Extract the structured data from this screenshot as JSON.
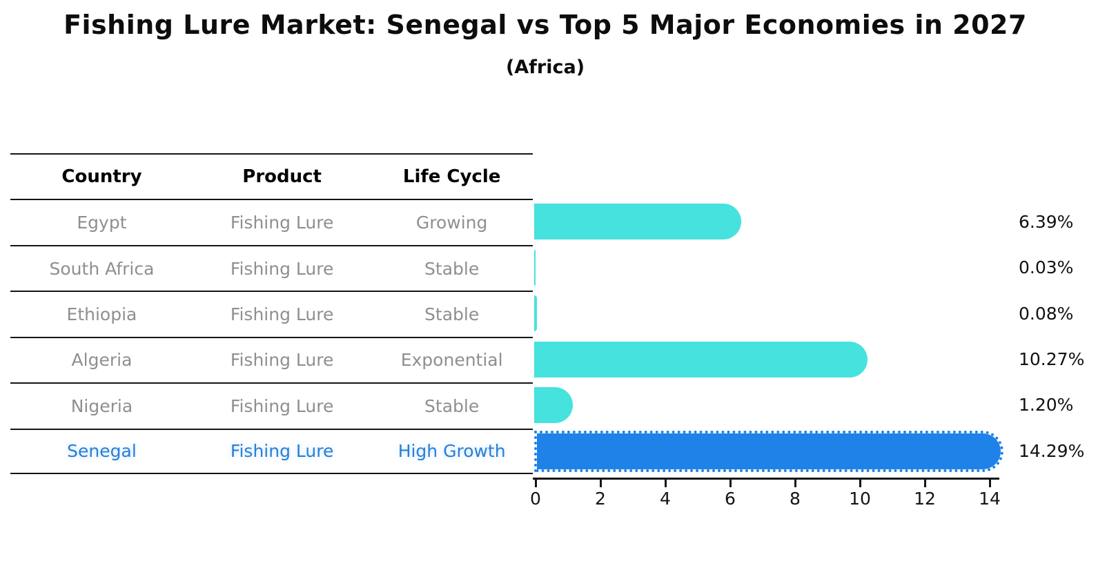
{
  "title": "Fishing Lure Market: Senegal vs Top 5 Major Economies in 2027",
  "subtitle": "(Africa)",
  "table": {
    "headers": [
      "Country",
      "Product",
      "Life Cycle"
    ],
    "rows": [
      {
        "country": "Egypt",
        "product": "Fishing Lure",
        "life_cycle": "Growing"
      },
      {
        "country": "South Africa",
        "product": "Fishing Lure",
        "life_cycle": "Stable"
      },
      {
        "country": "Ethiopia",
        "product": "Fishing Lure",
        "life_cycle": "Stable"
      },
      {
        "country": "Algeria",
        "product": "Fishing Lure",
        "life_cycle": "Exponential"
      },
      {
        "country": "Nigeria",
        "product": "Fishing Lure",
        "life_cycle": "Stable"
      },
      {
        "country": "Senegal",
        "product": "Fishing Lure",
        "life_cycle": "High Growth"
      }
    ]
  },
  "chart_data": {
    "type": "bar",
    "orientation": "horizontal",
    "categories": [
      "Egypt",
      "South Africa",
      "Ethiopia",
      "Algeria",
      "Nigeria",
      "Senegal"
    ],
    "values": [
      6.39,
      0.03,
      0.08,
      10.27,
      1.2,
      14.29
    ],
    "value_labels": [
      "6.39%",
      "0.03%",
      "0.08%",
      "10.27%",
      "1.20%",
      "14.29%"
    ],
    "xticks": [
      0,
      2,
      4,
      6,
      8,
      10,
      12,
      14
    ],
    "xtick_labels": [
      "0",
      "2",
      "4",
      "6",
      "8",
      "10",
      "12",
      "14"
    ],
    "xlim": [
      0,
      14.4
    ],
    "grid": "off",
    "highlight_category": "Senegal",
    "bar_color": "#45e2de",
    "highlight_bar_color": "#1e82e8",
    "highlight_text_color": "#2a7fd4",
    "muted_text_color": "#8f8f8f"
  }
}
